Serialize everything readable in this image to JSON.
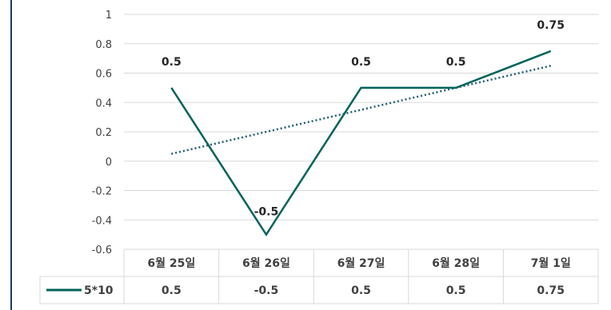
{
  "chart_data": {
    "type": "line",
    "title": "",
    "xlabel": "",
    "ylabel": "",
    "categories": [
      "6월 25일",
      "6월 26일",
      "6월 27일",
      "6월 28일",
      "7월 1일"
    ],
    "series": [
      {
        "name": "5*10",
        "values": [
          0.5,
          -0.5,
          0.5,
          0.5,
          0.75
        ],
        "color": "#00635A"
      }
    ],
    "data_labels": [
      "0.5",
      "-0.5",
      "0.5",
      "0.5",
      "0.75"
    ],
    "trendline": {
      "style": "dotted",
      "color": "#1F5C70",
      "start": 0.05,
      "end": 0.65
    },
    "ylim": [
      -0.6,
      1
    ],
    "yticks": [
      "1",
      "0.8",
      "0.6",
      "0.4",
      "0.2",
      "0",
      "-0.2",
      "-0.4",
      "-0.6"
    ],
    "grid": true,
    "data_table": true,
    "legend": "data-table"
  }
}
